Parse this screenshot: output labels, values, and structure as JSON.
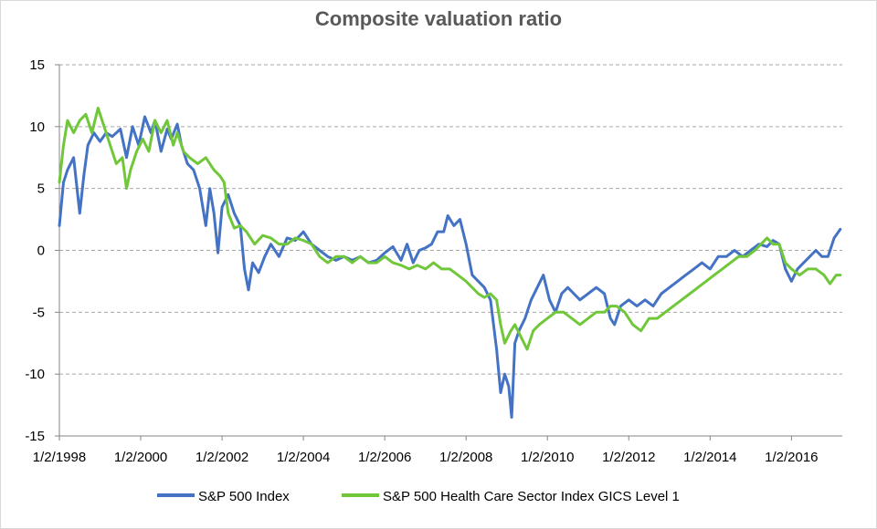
{
  "chart_data": {
    "type": "line",
    "title": "Composite valuation ratio",
    "xlabel": "",
    "ylabel": "",
    "ylim": [
      -15,
      15
    ],
    "yticks": [
      "15",
      "10",
      "5",
      "0",
      "-5",
      "-10",
      "-15"
    ],
    "xlim": [
      1998.0,
      2017.25
    ],
    "xticks": [
      {
        "label": "1/2/1998",
        "x": 1998.0
      },
      {
        "label": "1/2/2000",
        "x": 2000.0
      },
      {
        "label": "1/2/2002",
        "x": 2002.0
      },
      {
        "label": "1/2/2004",
        "x": 2004.0
      },
      {
        "label": "1/2/2006",
        "x": 2006.0
      },
      {
        "label": "1/2/2008",
        "x": 2008.0
      },
      {
        "label": "1/2/2010",
        "x": 2010.0
      },
      {
        "label": "1/2/2012",
        "x": 2012.0
      },
      {
        "label": "1/2/2014",
        "x": 2014.0
      },
      {
        "label": "1/2/2016",
        "x": 2016.0
      }
    ],
    "grid": "horizontal dashed",
    "legend": "bottom",
    "series": [
      {
        "name": "S&P 500 Index",
        "color": "#4472c4",
        "x": [
          1998.0,
          1998.1,
          1998.2,
          1998.35,
          1998.5,
          1998.6,
          1998.7,
          1998.85,
          1999.0,
          1999.15,
          1999.3,
          1999.5,
          1999.65,
          1999.8,
          1999.95,
          2000.1,
          2000.25,
          2000.35,
          2000.5,
          2000.65,
          2000.75,
          2000.9,
          2001.0,
          2001.15,
          2001.3,
          2001.45,
          2001.6,
          2001.7,
          2001.8,
          2001.9,
          2002.0,
          2002.15,
          2002.3,
          2002.45,
          2002.55,
          2002.65,
          2002.75,
          2002.9,
          2003.05,
          2003.2,
          2003.4,
          2003.6,
          2003.8,
          2004.0,
          2004.2,
          2004.4,
          2004.6,
          2004.8,
          2005.0,
          2005.2,
          2005.4,
          2005.6,
          2005.8,
          2006.0,
          2006.2,
          2006.4,
          2006.55,
          2006.7,
          2006.85,
          2007.0,
          2007.15,
          2007.3,
          2007.45,
          2007.55,
          2007.7,
          2007.85,
          2008.0,
          2008.15,
          2008.3,
          2008.45,
          2008.6,
          2008.75,
          2008.85,
          2008.95,
          2009.05,
          2009.12,
          2009.2,
          2009.3,
          2009.45,
          2009.6,
          2009.75,
          2009.9,
          2010.05,
          2010.2,
          2010.35,
          2010.5,
          2010.65,
          2010.8,
          2011.0,
          2011.2,
          2011.4,
          2011.55,
          2011.65,
          2011.8,
          2012.0,
          2012.2,
          2012.4,
          2012.6,
          2012.8,
          2013.0,
          2013.2,
          2013.4,
          2013.6,
          2013.8,
          2014.0,
          2014.2,
          2014.4,
          2014.6,
          2014.8,
          2015.0,
          2015.2,
          2015.4,
          2015.55,
          2015.7,
          2015.85,
          2016.0,
          2016.15,
          2016.3,
          2016.45,
          2016.6,
          2016.75,
          2016.9,
          2017.05,
          2017.2
        ],
        "values": [
          2.0,
          5.5,
          6.5,
          7.5,
          3.0,
          6.0,
          8.5,
          9.5,
          8.8,
          9.5,
          9.2,
          9.8,
          7.5,
          10.0,
          8.5,
          10.8,
          9.5,
          10.5,
          8.0,
          9.8,
          9.0,
          10.2,
          8.5,
          7.0,
          6.5,
          5.0,
          2.0,
          5.0,
          3.0,
          -0.2,
          3.5,
          4.5,
          3.0,
          2.0,
          -1.5,
          -3.2,
          -1.0,
          -1.8,
          -0.5,
          0.5,
          -0.5,
          1.0,
          0.8,
          1.5,
          0.5,
          0.0,
          -0.5,
          -0.8,
          -0.5,
          -0.8,
          -0.5,
          -1.0,
          -0.8,
          -0.2,
          0.3,
          -0.8,
          0.5,
          -1.0,
          0.0,
          0.2,
          0.5,
          1.5,
          1.5,
          2.8,
          2.0,
          2.5,
          0.5,
          -2.0,
          -2.5,
          -3.0,
          -4.0,
          -8.0,
          -11.5,
          -10.0,
          -11.0,
          -13.5,
          -7.5,
          -6.5,
          -5.5,
          -4.0,
          -3.0,
          -2.0,
          -4.0,
          -5.0,
          -3.5,
          -3.0,
          -3.5,
          -4.0,
          -3.5,
          -3.0,
          -3.5,
          -5.5,
          -6.0,
          -4.5,
          -4.0,
          -4.5,
          -4.0,
          -4.5,
          -3.5,
          -3.0,
          -2.5,
          -2.0,
          -1.5,
          -1.0,
          -1.5,
          -0.5,
          -0.5,
          0.0,
          -0.5,
          0.0,
          0.5,
          0.3,
          0.8,
          0.5,
          -1.5,
          -2.5,
          -1.5,
          -1.0,
          -0.5,
          0.0,
          -0.5,
          -0.5,
          1.0,
          1.7
        ]
      },
      {
        "name": "S&P 500 Health Care Sector Index GICS Level 1",
        "color": "#70c739",
        "x": [
          1998.0,
          1998.1,
          1998.2,
          1998.35,
          1998.5,
          1998.65,
          1998.8,
          1998.95,
          1999.1,
          1999.25,
          1999.4,
          1999.55,
          1999.65,
          1999.75,
          1999.9,
          2000.05,
          2000.2,
          2000.35,
          2000.5,
          2000.65,
          2000.8,
          2000.9,
          2001.05,
          2001.2,
          2001.4,
          2001.6,
          2001.8,
          2001.95,
          2002.05,
          2002.15,
          2002.3,
          2002.45,
          2002.6,
          2002.8,
          2003.0,
          2003.2,
          2003.4,
          2003.6,
          2003.8,
          2004.0,
          2004.2,
          2004.4,
          2004.6,
          2004.8,
          2005.0,
          2005.2,
          2005.4,
          2005.6,
          2005.8,
          2006.0,
          2006.2,
          2006.4,
          2006.6,
          2006.8,
          2007.0,
          2007.2,
          2007.4,
          2007.6,
          2007.8,
          2008.0,
          2008.15,
          2008.3,
          2008.45,
          2008.6,
          2008.75,
          2008.85,
          2008.95,
          2009.1,
          2009.2,
          2009.35,
          2009.5,
          2009.65,
          2009.8,
          2010.0,
          2010.2,
          2010.4,
          2010.6,
          2010.8,
          2011.0,
          2011.2,
          2011.4,
          2011.55,
          2011.7,
          2011.9,
          2012.1,
          2012.3,
          2012.5,
          2012.7,
          2012.9,
          2013.1,
          2013.3,
          2013.5,
          2013.7,
          2013.9,
          2014.1,
          2014.3,
          2014.5,
          2014.7,
          2014.9,
          2015.1,
          2015.25,
          2015.4,
          2015.55,
          2015.7,
          2015.85,
          2016.0,
          2016.2,
          2016.4,
          2016.6,
          2016.8,
          2016.95,
          2017.1,
          2017.2
        ],
        "values": [
          5.5,
          8.5,
          10.5,
          9.5,
          10.5,
          11.0,
          9.5,
          11.5,
          10.0,
          8.5,
          7.0,
          7.5,
          5.0,
          6.5,
          8.0,
          9.0,
          8.0,
          10.5,
          9.5,
          10.5,
          8.5,
          9.5,
          8.0,
          7.5,
          7.0,
          7.5,
          6.5,
          6.0,
          5.5,
          3.0,
          1.8,
          2.0,
          1.5,
          0.5,
          1.2,
          1.0,
          0.5,
          0.5,
          1.0,
          0.8,
          0.5,
          -0.5,
          -1.0,
          -0.5,
          -0.5,
          -1.0,
          -0.5,
          -1.0,
          -1.0,
          -0.5,
          -1.0,
          -1.2,
          -1.5,
          -1.2,
          -1.5,
          -1.0,
          -1.5,
          -1.5,
          -2.0,
          -2.5,
          -3.0,
          -3.5,
          -3.8,
          -3.5,
          -4.0,
          -6.0,
          -7.5,
          -6.5,
          -6.0,
          -7.0,
          -8.0,
          -6.5,
          -6.0,
          -5.5,
          -5.0,
          -5.0,
          -5.5,
          -6.0,
          -5.5,
          -5.0,
          -5.0,
          -4.5,
          -4.5,
          -5.0,
          -6.0,
          -6.5,
          -5.5,
          -5.5,
          -5.0,
          -4.5,
          -4.0,
          -3.5,
          -3.0,
          -2.5,
          -2.0,
          -1.5,
          -1.0,
          -0.5,
          -0.5,
          0.0,
          0.5,
          1.0,
          0.5,
          0.5,
          -1.0,
          -1.5,
          -2.0,
          -1.5,
          -1.5,
          -2.0,
          -2.7,
          -2.0,
          -2.0
        ]
      }
    ]
  }
}
